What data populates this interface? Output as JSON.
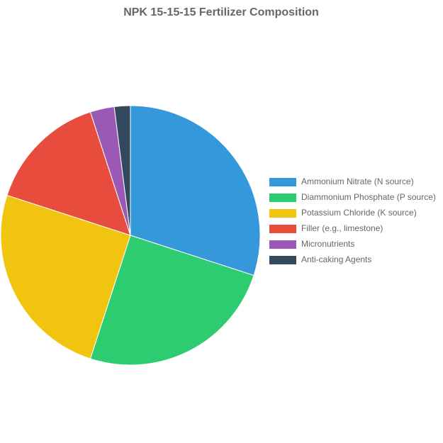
{
  "chart_data": {
    "type": "pie",
    "title": "NPK 15-15-15 Fertilizer Composition",
    "categories": [
      "Ammonium Nitrate (N source)",
      "Diammonium Phosphate (P source)",
      "Potassium Chloride (K source)",
      "Filler (e.g., limestone)",
      "Micronutrients",
      "Anti-caking Agents"
    ],
    "values": [
      30,
      25,
      25,
      15,
      3,
      2
    ],
    "colors": [
      "#3498db",
      "#2ecc71",
      "#f1c40f",
      "#e74c3c",
      "#9b59b6",
      "#34495e"
    ],
    "legend": "right"
  }
}
